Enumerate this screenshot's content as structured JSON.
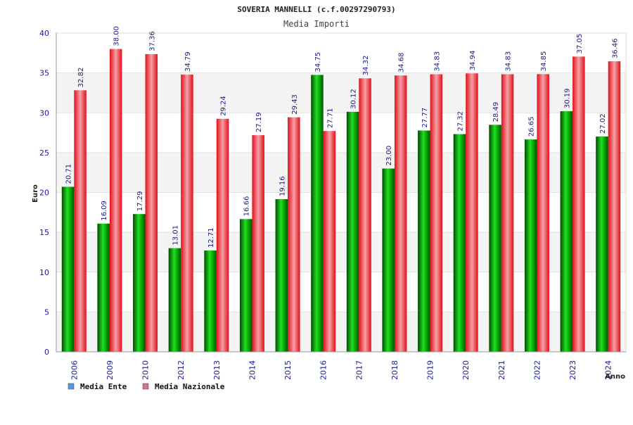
{
  "chart_data": {
    "type": "bar",
    "title": "SOVERIA MANNELLI (c.f.00297290793)",
    "subtitle": "Media Importi",
    "xlabel": "Anno",
    "ylabel": "Euro",
    "ylim": [
      0,
      40
    ],
    "yticks": [
      0,
      5,
      10,
      15,
      20,
      25,
      30,
      35,
      40
    ],
    "grid": true,
    "legend_position": "bottom-left",
    "categories": [
      "2006",
      "2009",
      "2010",
      "2012",
      "2013",
      "2014",
      "2015",
      "2016",
      "2017",
      "2018",
      "2019",
      "2020",
      "2021",
      "2022",
      "2023",
      "2024"
    ],
    "series": [
      {
        "name": "Media Ente",
        "color": "#00aa00",
        "legend_color": "#5b9bd5",
        "values": [
          20.71,
          16.09,
          17.29,
          13.01,
          12.71,
          16.66,
          19.16,
          34.75,
          30.12,
          23.0,
          27.77,
          27.32,
          28.49,
          26.65,
          30.19,
          27.02
        ],
        "labels": [
          "20.71",
          "16.09",
          "17.29",
          "13.01",
          "12.71",
          "16.66",
          "19.16",
          "34.75",
          "30.12",
          "23.00",
          "27.77",
          "27.32",
          "28.49",
          "26.65",
          "30.19",
          "27.02"
        ]
      },
      {
        "name": "Media Nazionale",
        "color": "#e8141e",
        "legend_color": "#d070a0",
        "values": [
          32.82,
          38.0,
          37.36,
          34.79,
          29.24,
          27.19,
          29.43,
          27.71,
          34.32,
          34.68,
          34.83,
          34.94,
          34.83,
          34.85,
          37.05,
          36.46
        ],
        "labels": [
          "32.82",
          "38.00",
          "37.36",
          "34.79",
          "29.24",
          "27.19",
          "29.43",
          "27.71",
          "34.32",
          "34.68",
          "34.83",
          "34.94",
          "34.83",
          "34.85",
          "37.05",
          "36.46"
        ]
      }
    ]
  }
}
